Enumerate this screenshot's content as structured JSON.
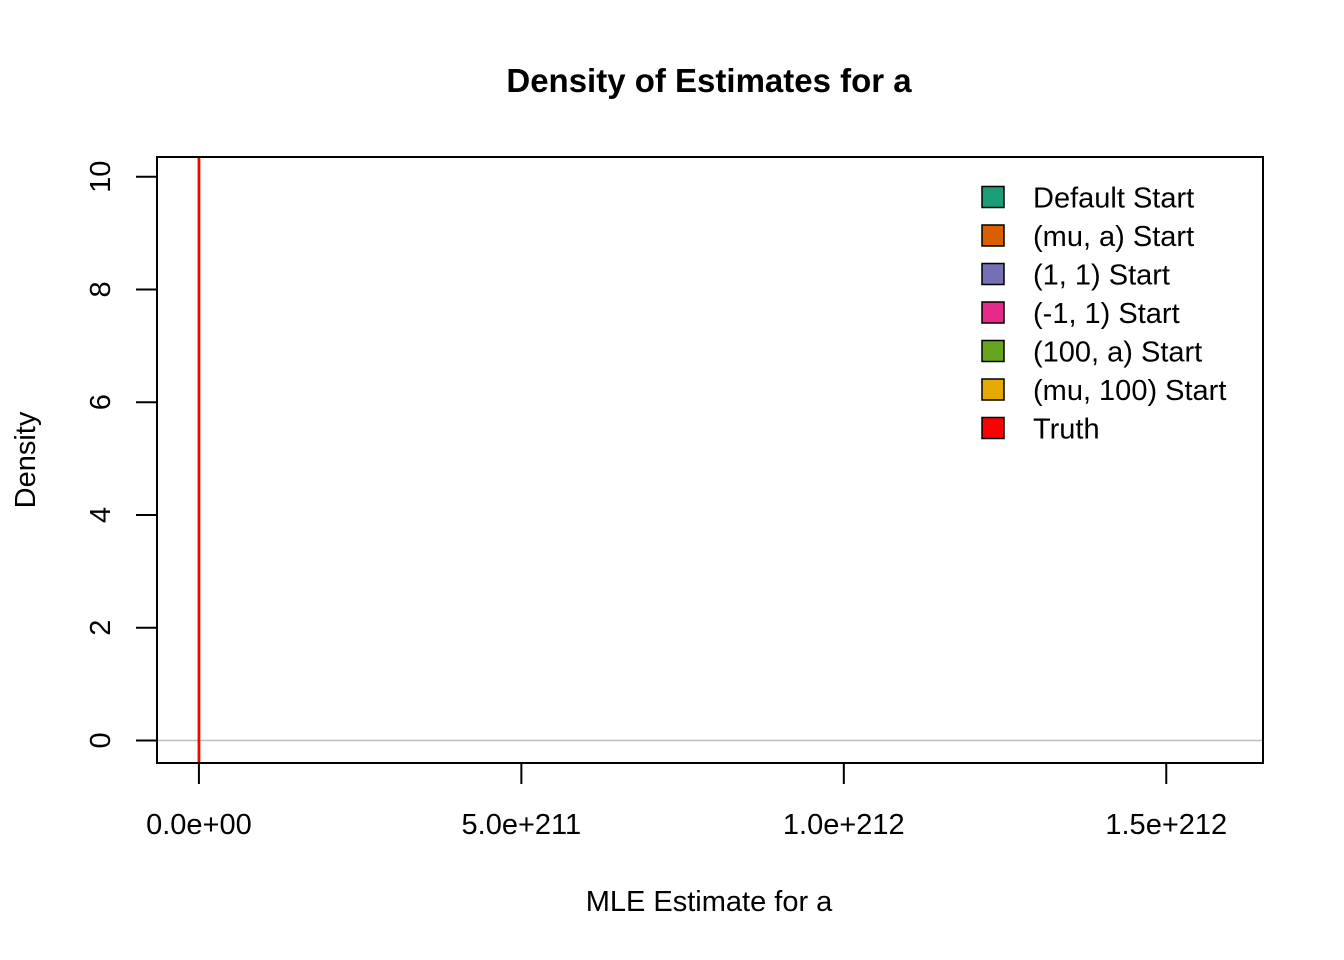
{
  "chart_data": {
    "type": "line",
    "title": "Density of Estimates for a",
    "xlabel": "MLE Estimate for a",
    "ylabel": "Density",
    "xlim": [
      -6.5e+210,
      1.65e+212
    ],
    "ylim": [
      -0.4,
      10.35
    ],
    "x_ticks": [
      {
        "value": 0,
        "label": "0.0e+00"
      },
      {
        "value": 5e+211,
        "label": "5.0e+211"
      },
      {
        "value": 1e+212,
        "label": "1.0e+212"
      },
      {
        "value": 1.5e+212,
        "label": "1.5e+212"
      }
    ],
    "y_ticks": [
      {
        "value": 0,
        "label": "0"
      },
      {
        "value": 2,
        "label": "2"
      },
      {
        "value": 4,
        "label": "4"
      },
      {
        "value": 6,
        "label": "6"
      },
      {
        "value": 8,
        "label": "8"
      },
      {
        "value": 10,
        "label": "10"
      }
    ],
    "zero_line": {
      "y": 0,
      "color": "#bebebe"
    },
    "series": [
      {
        "name": "Default Start",
        "color": "#1B9E77",
        "x_spike": 0
      },
      {
        "name": "(mu, a) Start",
        "color": "#D95F02",
        "x_spike": 0
      },
      {
        "name": "(1, 1) Start",
        "color": "#7570B3",
        "x_spike": 0
      },
      {
        "name": "(-1, 1) Start",
        "color": "#E7298A",
        "x_spike": 0
      },
      {
        "name": "(100, a) Start",
        "color": "#66A61E",
        "x_spike": 0
      },
      {
        "name": "(mu, 100) Start",
        "color": "#E6AB02",
        "x_spike": 0
      }
    ],
    "truth": {
      "name": "Truth",
      "value": 0,
      "color": "#FF0000"
    },
    "legend": {
      "position": "top-right",
      "entries": [
        {
          "label": "Default Start",
          "color": "#1B9E77"
        },
        {
          "label": "(mu, a) Start",
          "color": "#D95F02"
        },
        {
          "label": "(1, 1) Start",
          "color": "#7570B3"
        },
        {
          "label": "(-1, 1) Start",
          "color": "#E7298A"
        },
        {
          "label": "(100, a) Start",
          "color": "#66A61E"
        },
        {
          "label": "(mu, 100) Start",
          "color": "#E6AB02"
        },
        {
          "label": "Truth",
          "color": "#FF0000"
        }
      ]
    },
    "grid": false
  }
}
